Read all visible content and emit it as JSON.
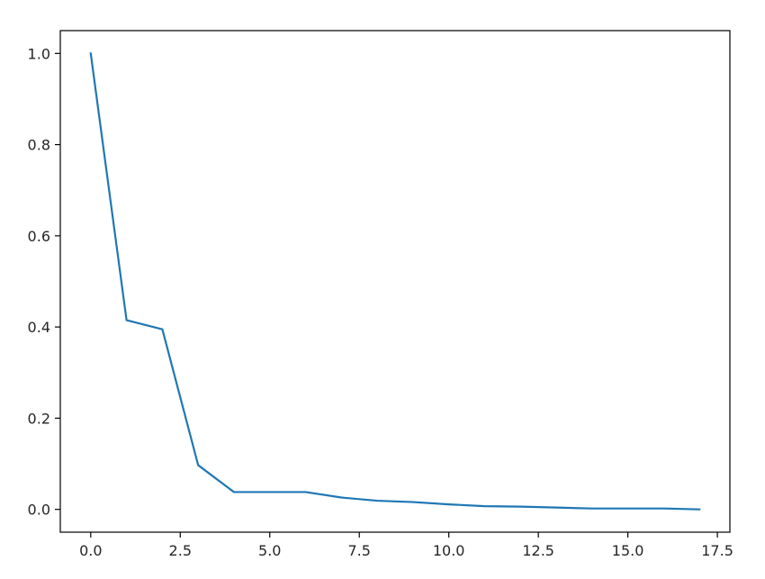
{
  "chart_data": {
    "type": "line",
    "title": "",
    "xlabel": "",
    "ylabel": "",
    "xlim": [
      -0.85,
      17.85
    ],
    "ylim": [
      -0.05,
      1.05
    ],
    "grid": false,
    "x_ticks": [
      {
        "value": 0.0,
        "label": "0.0"
      },
      {
        "value": 2.5,
        "label": "2.5"
      },
      {
        "value": 5.0,
        "label": "5.0"
      },
      {
        "value": 7.5,
        "label": "7.5"
      },
      {
        "value": 10.0,
        "label": "10.0"
      },
      {
        "value": 12.5,
        "label": "12.5"
      },
      {
        "value": 15.0,
        "label": "15.0"
      },
      {
        "value": 17.5,
        "label": "17.5"
      }
    ],
    "y_ticks": [
      {
        "value": 0.0,
        "label": "0.0"
      },
      {
        "value": 0.2,
        "label": "0.2"
      },
      {
        "value": 0.4,
        "label": "0.4"
      },
      {
        "value": 0.6,
        "label": "0.6"
      },
      {
        "value": 0.8,
        "label": "0.8"
      },
      {
        "value": 1.0,
        "label": "1.0"
      }
    ],
    "series": [
      {
        "color": "#1f77b4",
        "x": [
          0,
          1,
          2,
          3,
          4,
          5,
          6,
          7,
          8,
          9,
          10,
          11,
          12,
          13,
          14,
          15,
          16,
          17
        ],
        "y": [
          1.0,
          0.415,
          0.395,
          0.097,
          0.038,
          0.038,
          0.038,
          0.026,
          0.019,
          0.016,
          0.011,
          0.007,
          0.006,
          0.004,
          0.002,
          0.002,
          0.002,
          0.0
        ]
      }
    ]
  }
}
